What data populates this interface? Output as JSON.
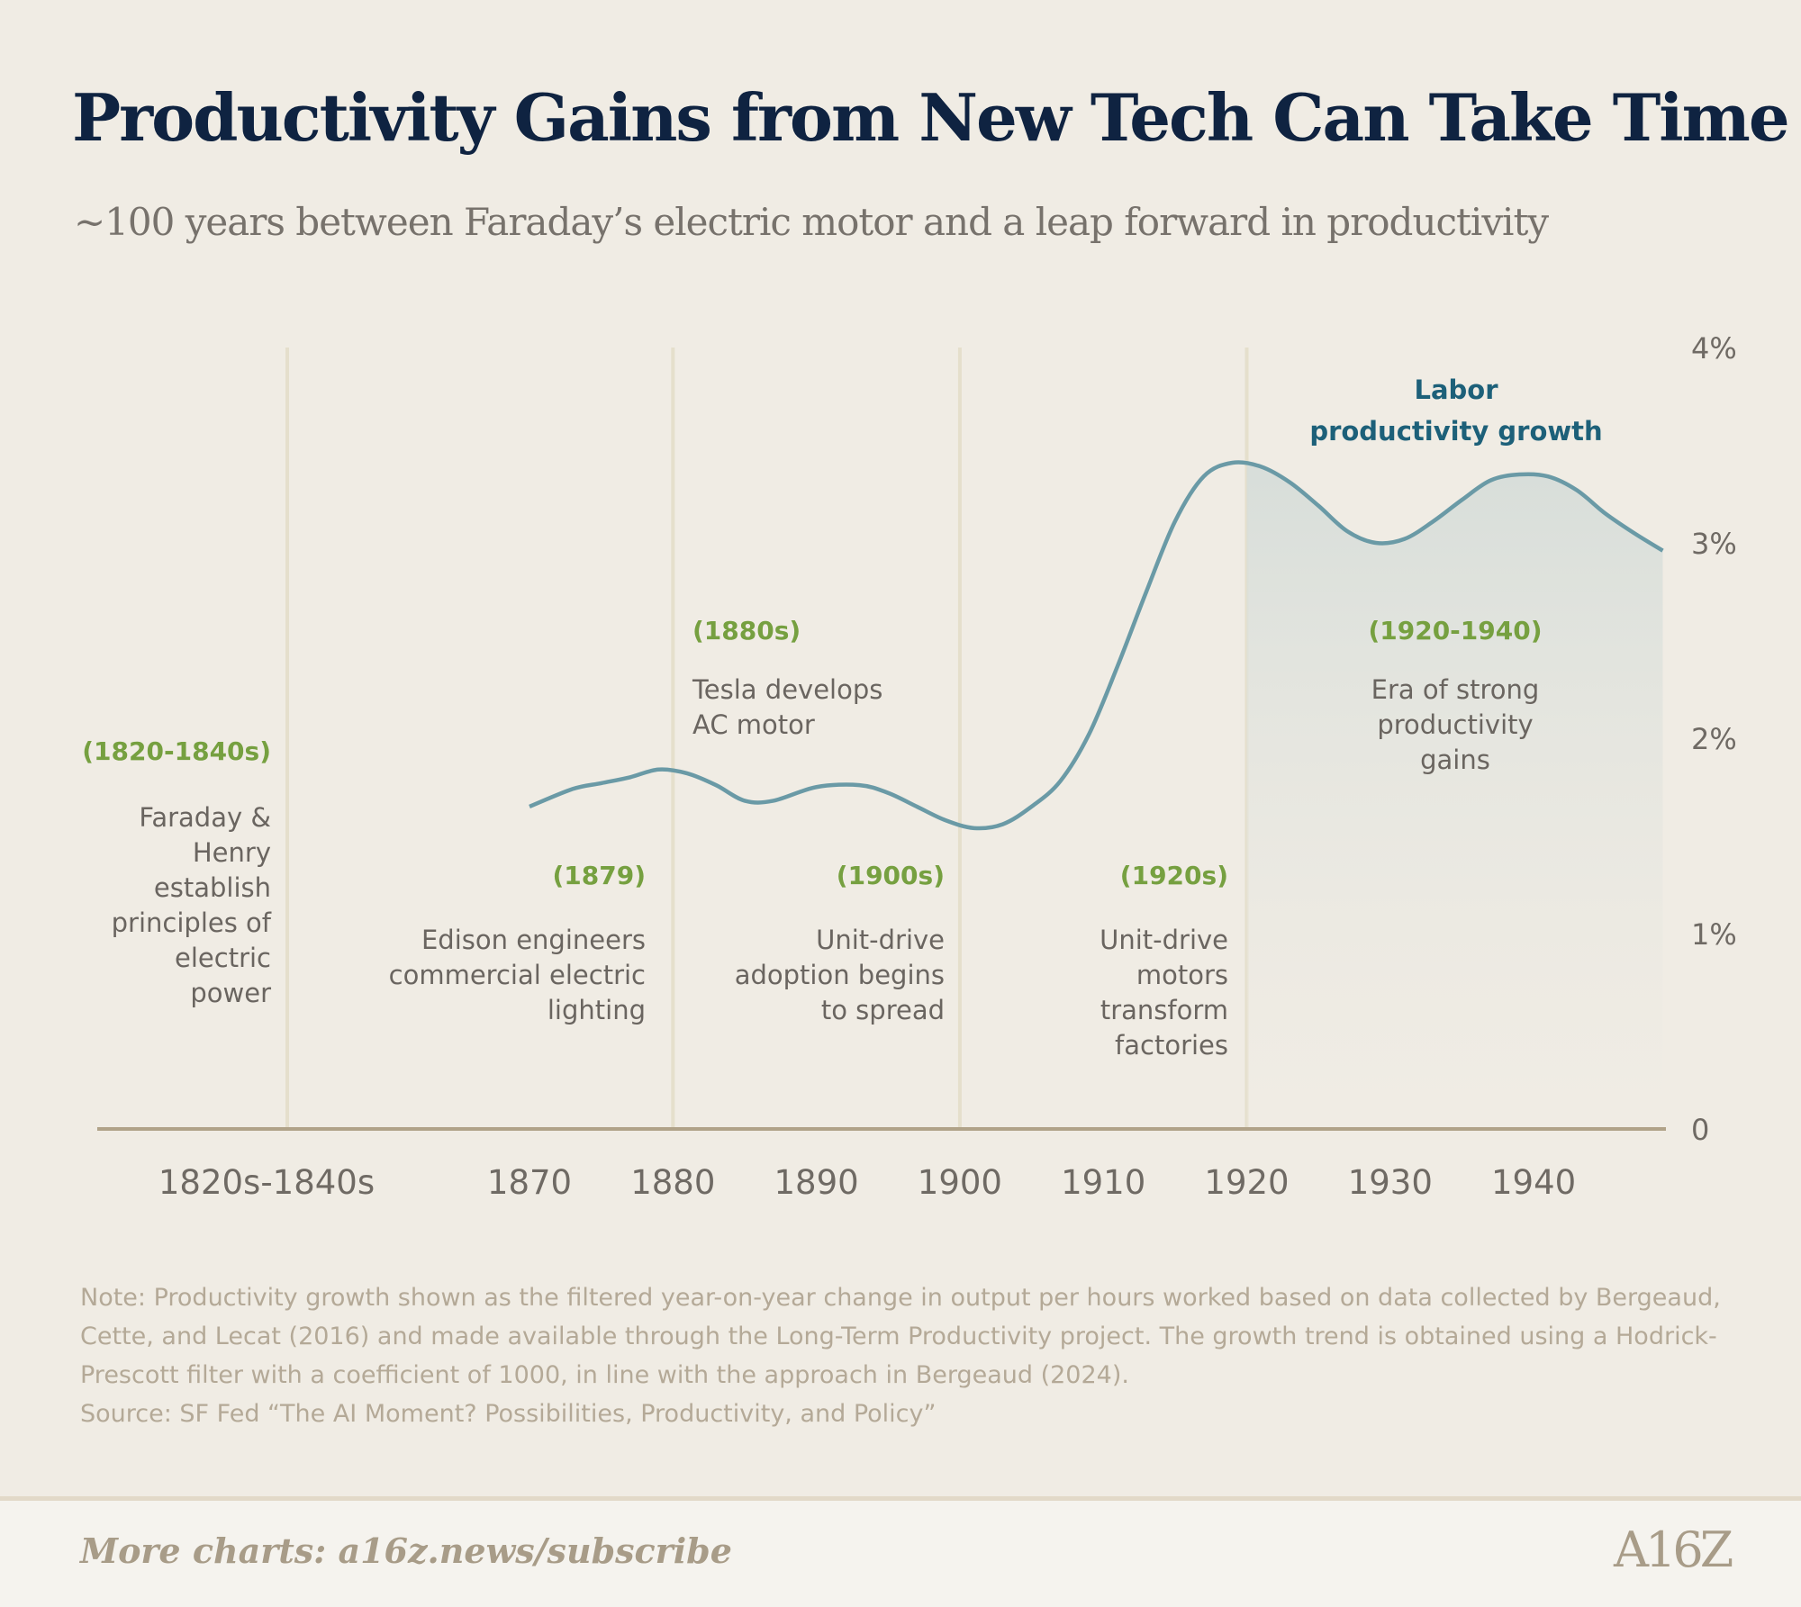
{
  "title": "Productivity Gains from New Tech Can Take Time",
  "subtitle": "~100 years between Faraday’s electric motor and a leap forward in productivity",
  "annotations": [
    {
      "tag": "(1820-1840s)",
      "lines": [
        "Faraday &",
        "Henry",
        "establish",
        "principles of",
        "electric",
        "power"
      ]
    },
    {
      "tag": "(1880s)",
      "lines": [
        "Tesla develops",
        "AC motor"
      ]
    },
    {
      "tag": "(1879)",
      "lines": [
        "Edison engineers",
        "commercial electric",
        "lighting"
      ]
    },
    {
      "tag": "(1900s)",
      "lines": [
        "Unit-drive",
        "adoption begins",
        "to spread"
      ]
    },
    {
      "tag": "(1920s)",
      "lines": [
        "Unit-drive",
        "motors",
        "transform",
        "factories"
      ]
    },
    {
      "tag": "(1920-1940)",
      "lines": [
        "Era of strong",
        "productivity",
        "gains"
      ]
    }
  ],
  "chart_data": {
    "type": "line",
    "title": "Productivity Gains from New Tech Can Take Time",
    "series": [
      {
        "name": "Labor productivity growth",
        "name_lines": [
          "Labor",
          "productivity growth"
        ],
        "color": "#6a9aa6",
        "x": [
          1870,
          1873,
          1875,
          1877,
          1879,
          1881,
          1883,
          1885,
          1887,
          1890,
          1893,
          1895,
          1897,
          1899,
          1901,
          1903,
          1905,
          1907,
          1909,
          1911,
          1913,
          1915,
          1917,
          1919,
          1921,
          1923,
          1925,
          1927,
          1929,
          1931,
          1933,
          1935,
          1937,
          1939,
          1941,
          1943,
          1945,
          1947,
          1949
        ],
        "y": [
          1.65,
          1.74,
          1.77,
          1.8,
          1.84,
          1.82,
          1.76,
          1.68,
          1.68,
          1.75,
          1.76,
          1.72,
          1.65,
          1.58,
          1.54,
          1.56,
          1.65,
          1.78,
          2.02,
          2.37,
          2.75,
          3.11,
          3.34,
          3.41,
          3.39,
          3.31,
          3.19,
          3.06,
          3.0,
          3.02,
          3.11,
          3.22,
          3.32,
          3.35,
          3.34,
          3.27,
          3.15,
          3.05,
          2.96
        ]
      }
    ],
    "shaded_range": [
      1920,
      1949
    ],
    "x_ticks": [
      "1870",
      "1880",
      "1890",
      "1900",
      "1910",
      "1920",
      "1930",
      "1940"
    ],
    "x_tick_values": [
      1870,
      1880,
      1890,
      1900,
      1910,
      1920,
      1930,
      1940
    ],
    "x_extra_label": "1820s-1840s",
    "y_ticks": [
      "0",
      "1%",
      "2%",
      "3%",
      "4%"
    ],
    "y_tick_values": [
      0,
      1,
      2,
      3,
      4
    ],
    "ylim": [
      0,
      4
    ],
    "xlim": [
      1870,
      1949
    ],
    "gridlines_x": [
      1880,
      1900,
      1920
    ],
    "y_axis_position": "right",
    "grid": false
  },
  "note": "Note: Productivity growth shown as the filtered year-on-year change in output per hours worked based on data collected by Bergeaud, Cette, and Lecat (2016) and made available through the Long-Term Productivity project. The growth trend is obtained using a Hodrick-Prescott filter with a coefficient of 1000, in line with the approach in Bergeaud (2024).",
  "source": "Source: SF Fed “The AI Moment? Possibilities, Productivity, and Policy”",
  "footer": {
    "link": "More charts: a16z.news/subscribe",
    "logo": "A16Z"
  }
}
